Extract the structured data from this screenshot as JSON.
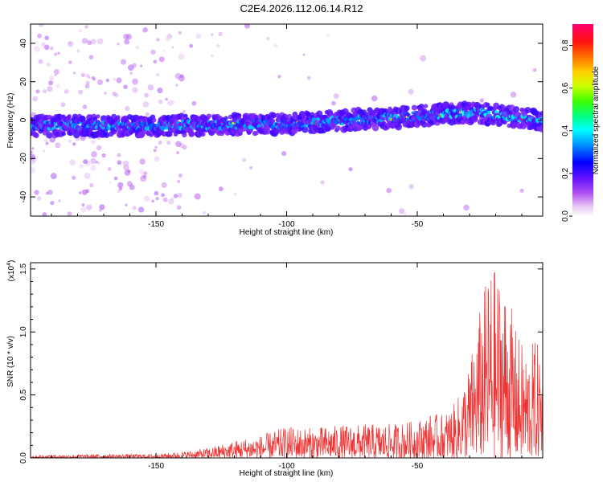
{
  "title": "C2E4.2026.112.06.14.R12",
  "chart_data": [
    {
      "type": "heatmap",
      "name": "spectrogram",
      "xlabel": "Height of straight line (km)",
      "ylabel": "Frequency (Hz)",
      "xlim": [
        -198,
        -2
      ],
      "ylim": [
        -50,
        50
      ],
      "xticks": [
        -150,
        -100,
        -50
      ],
      "yticks": [
        -40,
        -20,
        0,
        20,
        40
      ],
      "band": {
        "x": [
          -198,
          -150,
          -100,
          -50,
          -30,
          -2
        ],
        "center_hz": [
          -3,
          -3,
          -2,
          2,
          4,
          0
        ]
      },
      "colorbar": {
        "label": "Normalized spectral amplitude",
        "range": [
          0.0,
          0.9
        ],
        "ticks": [
          0.0,
          0.2,
          0.4,
          0.6,
          0.8
        ],
        "tick_labels": [
          "0.0",
          "0.2",
          "0.4",
          "0.6",
          "0.8"
        ]
      }
    },
    {
      "type": "line",
      "name": "snr",
      "xlabel": "Height of straight line (km)",
      "ylabel": "SNR (10 * v/v)",
      "yscale_label": "(x10",
      "yscale_exp": "4",
      "xlim": [
        -198,
        -2
      ],
      "ylim": [
        0,
        1.55
      ],
      "xticks": [
        -150,
        -100,
        -50
      ],
      "yticks": [
        0.0,
        0.5,
        1.0,
        1.5
      ],
      "ytick_labels": [
        "0.0",
        "0.5",
        "1.0",
        "1.5"
      ],
      "color": "#ee3333",
      "envelope": {
        "x": [
          -198,
          -170,
          -150,
          -140,
          -130,
          -120,
          -110,
          -100,
          -90,
          -80,
          -70,
          -60,
          -50,
          -45,
          -40,
          -35,
          -30,
          -25,
          -22,
          -18,
          -15,
          -12,
          -8,
          -5,
          -2
        ],
        "amp": [
          0.02,
          0.03,
          0.03,
          0.05,
          0.08,
          0.14,
          0.18,
          0.25,
          0.24,
          0.26,
          0.27,
          0.27,
          0.3,
          0.35,
          0.35,
          0.45,
          0.75,
          1.3,
          1.55,
          1.45,
          1.3,
          1.0,
          0.85,
          0.95,
          0.85
        ]
      }
    }
  ]
}
